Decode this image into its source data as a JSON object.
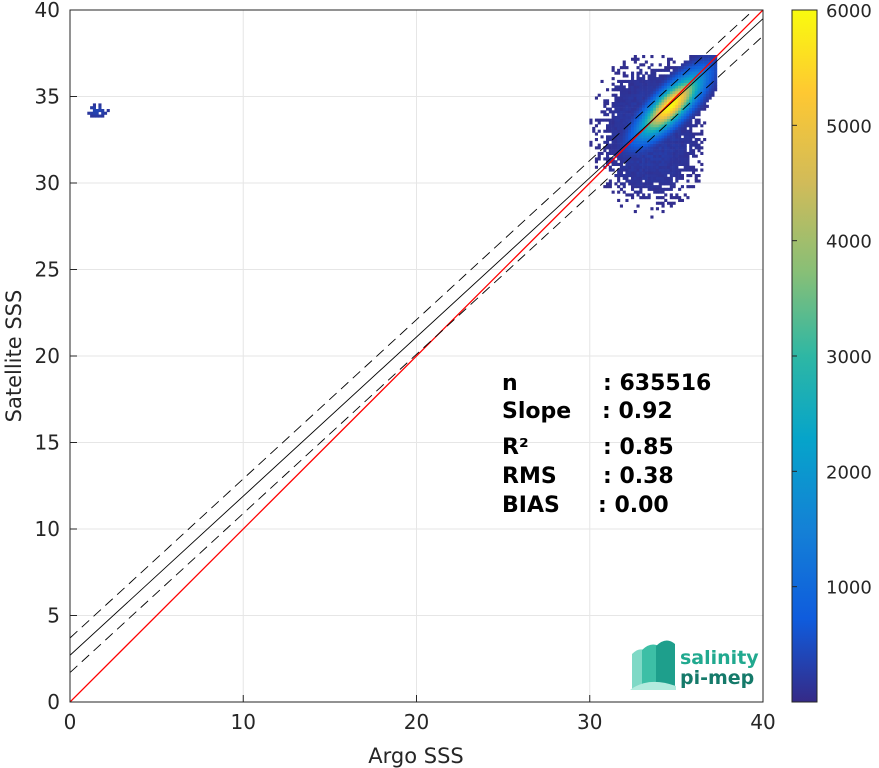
{
  "chart_data": {
    "type": "heatmap",
    "title": "",
    "xlabel": "Argo SSS",
    "ylabel": "Satellite SSS",
    "xlim": [
      0,
      40
    ],
    "ylim": [
      0,
      40
    ],
    "x_ticks": [
      "0",
      "10",
      "20",
      "30",
      "40"
    ],
    "y_ticks": [
      "0",
      "5",
      "10",
      "15",
      "20",
      "25",
      "30",
      "35",
      "40"
    ],
    "grid": true,
    "colormap": "parula",
    "colorbar": {
      "range": [
        0,
        6000
      ],
      "ticks": [
        "1000",
        "2000",
        "3000",
        "4000",
        "5000",
        "6000"
      ]
    },
    "lines": [
      {
        "role": "one-to-one",
        "color": "#ff0000",
        "style": "solid",
        "slope": 1.0,
        "intercept": 0.0
      },
      {
        "role": "regression",
        "color": "#000000",
        "style": "solid",
        "slope": 0.92,
        "intercept": 2.7
      },
      {
        "role": "regression-upper",
        "color": "#000000",
        "style": "dashed",
        "slope": 0.92,
        "intercept": 3.7
      },
      {
        "role": "regression-lower",
        "color": "#000000",
        "style": "dashed",
        "slope": 0.92,
        "intercept": 1.7
      }
    ],
    "density_clusters": [
      {
        "x_range": [
          29.5,
          37.2
        ],
        "y_range": [
          27.0,
          37.3
        ],
        "peak_x": 34.6,
        "peak_y": 34.4,
        "peak_count": 6000
      },
      {
        "x_range": [
          1.0,
          2.2
        ],
        "y_range": [
          33.8,
          34.6
        ],
        "peak_x": 1.5,
        "peak_y": 34.1,
        "peak_count": 40
      }
    ],
    "stats": [
      {
        "label": "n",
        "value": ": 635516"
      },
      {
        "label": "Slope",
        "value": ": 0.92"
      },
      {
        "label": "R²",
        "value": ": 0.85"
      },
      {
        "label": "RMS",
        "value": ": 0.38"
      },
      {
        "label": "BIAS",
        "value": ": 0.00"
      }
    ]
  },
  "logo": {
    "line1": "salinity",
    "line2": "pi-mep"
  }
}
